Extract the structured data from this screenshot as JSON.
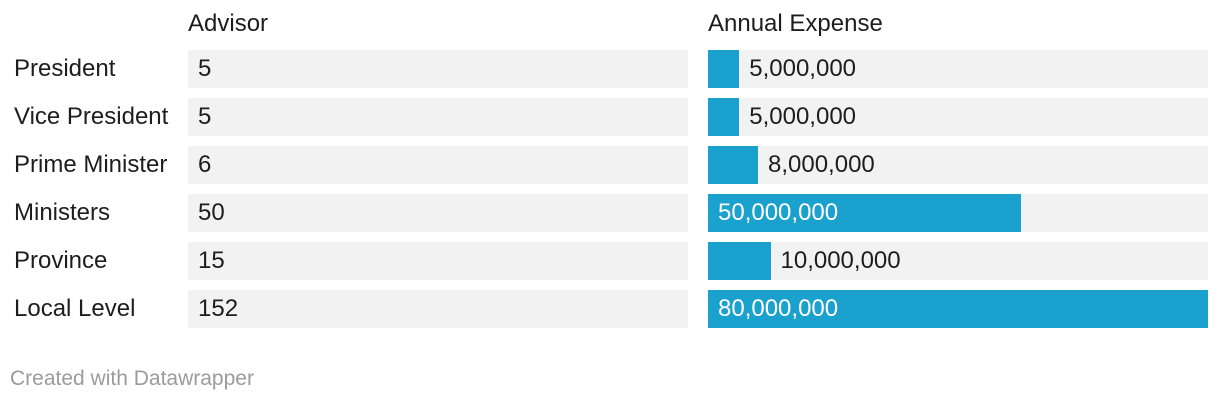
{
  "colors": {
    "bar": "#1aa1cd",
    "row_stripe": "#f2f2f2",
    "text": "#1d1d1d",
    "bar_label_inside": "#ffffff",
    "footer_text": "#9b9b9b",
    "background": "#ffffff"
  },
  "table": {
    "columns": {
      "row_header": "",
      "advisor": "Advisor",
      "expense": "Annual Expense"
    },
    "bar_axis_max": 80000000,
    "rows": [
      {
        "label": "President",
        "advisor": "5",
        "expense_value": 5000000,
        "expense_label": "5,000,000"
      },
      {
        "label": "Vice President",
        "advisor": "5",
        "expense_value": 5000000,
        "expense_label": "5,000,000"
      },
      {
        "label": "Prime Minister",
        "advisor": "6",
        "expense_value": 8000000,
        "expense_label": "8,000,000"
      },
      {
        "label": "Ministers",
        "advisor": "50",
        "expense_value": 50000000,
        "expense_label": "50,000,000"
      },
      {
        "label": "Province",
        "advisor": "15",
        "expense_value": 10000000,
        "expense_label": "10,000,000"
      },
      {
        "label": "Local Level",
        "advisor": "152",
        "expense_value": 80000000,
        "expense_label": "80,000,000"
      }
    ]
  },
  "footer": {
    "credit": "Created with Datawrapper"
  },
  "chart_data": {
    "type": "bar",
    "orientation": "horizontal",
    "title": "",
    "categories": [
      "President",
      "Vice President",
      "Prime Minister",
      "Ministers",
      "Province",
      "Local Level"
    ],
    "series": [
      {
        "name": "Advisor",
        "values": [
          5,
          5,
          6,
          50,
          15,
          152
        ]
      },
      {
        "name": "Annual Expense",
        "values": [
          5000000,
          5000000,
          8000000,
          50000000,
          10000000,
          80000000
        ]
      }
    ],
    "xlim": [
      0,
      80000000
    ],
    "grid": false,
    "legend": "none",
    "bar_color": "#1aa1cd",
    "value_labels": true
  }
}
